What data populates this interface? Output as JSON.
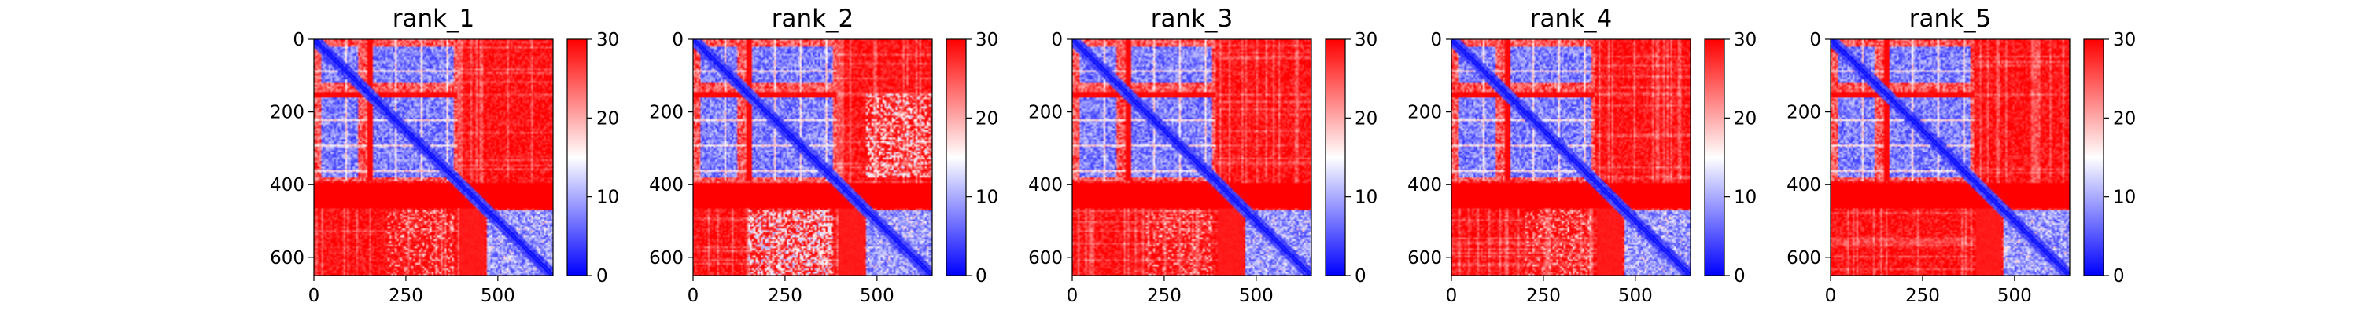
{
  "chart_data": [
    {
      "type": "heatmap",
      "title": "rank_1",
      "xlabel": "",
      "ylabel": "",
      "x_ticks": [
        0,
        250,
        500
      ],
      "y_ticks": [
        0,
        200,
        400,
        600
      ],
      "extent": [
        0,
        650
      ],
      "colorbar": {
        "min": 0,
        "max": 30,
        "ticks": [
          0,
          10,
          20,
          30
        ],
        "colormap": "bwr"
      },
      "domains": [
        [
          0,
          390
        ],
        [
          470,
          650
        ]
      ],
      "sub_blocks": [
        [
          20,
          120
        ],
        [
          160,
          380
        ]
      ],
      "strong_gaps": [
        [
          145,
          160
        ],
        [
          130,
          140
        ]
      ],
      "variant": "A"
    },
    {
      "type": "heatmap",
      "title": "rank_2",
      "xlabel": "",
      "ylabel": "",
      "x_ticks": [
        0,
        250,
        500
      ],
      "y_ticks": [
        0,
        200,
        400,
        600
      ],
      "extent": [
        0,
        650
      ],
      "colorbar": {
        "min": 0,
        "max": 30,
        "ticks": [
          0,
          10,
          20,
          30
        ],
        "colormap": "bwr"
      },
      "domains": [
        [
          0,
          390
        ],
        [
          470,
          650
        ]
      ],
      "sub_blocks": [
        [
          20,
          120
        ],
        [
          160,
          380
        ]
      ],
      "strong_gaps": [
        [
          145,
          160
        ],
        [
          130,
          140
        ]
      ],
      "variant": "B"
    },
    {
      "type": "heatmap",
      "title": "rank_3",
      "xlabel": "",
      "ylabel": "",
      "x_ticks": [
        0,
        250,
        500
      ],
      "y_ticks": [
        0,
        200,
        400,
        600
      ],
      "extent": [
        0,
        650
      ],
      "colorbar": {
        "min": 0,
        "max": 30,
        "ticks": [
          0,
          10,
          20,
          30
        ],
        "colormap": "bwr"
      },
      "domains": [
        [
          0,
          390
        ],
        [
          470,
          650
        ]
      ],
      "sub_blocks": [
        [
          20,
          120
        ],
        [
          160,
          380
        ]
      ],
      "strong_gaps": [
        [
          145,
          160
        ],
        [
          130,
          140
        ]
      ],
      "variant": "A"
    },
    {
      "type": "heatmap",
      "title": "rank_4",
      "xlabel": "",
      "ylabel": "",
      "x_ticks": [
        0,
        250,
        500
      ],
      "y_ticks": [
        0,
        200,
        400,
        600
      ],
      "extent": [
        0,
        650
      ],
      "colorbar": {
        "min": 0,
        "max": 30,
        "ticks": [
          0,
          10,
          20,
          30
        ],
        "colormap": "bwr"
      },
      "domains": [
        [
          0,
          390
        ],
        [
          470,
          650
        ]
      ],
      "sub_blocks": [
        [
          20,
          120
        ],
        [
          160,
          380
        ]
      ],
      "strong_gaps": [
        [
          145,
          160
        ],
        [
          130,
          140
        ]
      ],
      "variant": "A"
    },
    {
      "type": "heatmap",
      "title": "rank_5",
      "xlabel": "",
      "ylabel": "",
      "x_ticks": [
        0,
        250,
        500
      ],
      "y_ticks": [
        0,
        200,
        400,
        600
      ],
      "extent": [
        0,
        650
      ],
      "colorbar": {
        "min": 0,
        "max": 30,
        "ticks": [
          0,
          10,
          20,
          30
        ],
        "colormap": "bwr"
      },
      "domains": [
        [
          0,
          390
        ],
        [
          470,
          650
        ]
      ],
      "sub_blocks": [
        [
          20,
          120
        ],
        [
          160,
          380
        ]
      ],
      "strong_gaps": [
        [
          145,
          160
        ],
        [
          130,
          140
        ]
      ],
      "variant": "C"
    }
  ],
  "colors": {
    "low": "#0000ff",
    "mid": "#ffffff",
    "high": "#ff0000"
  }
}
